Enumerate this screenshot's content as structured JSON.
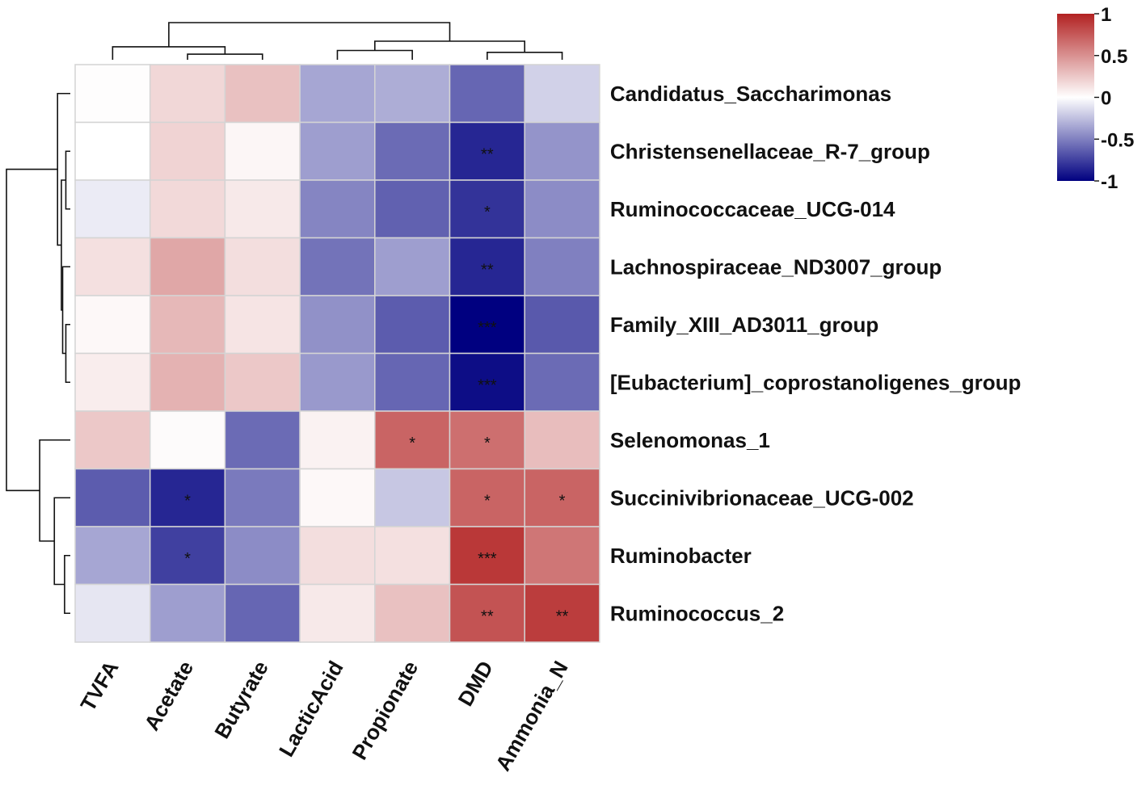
{
  "chart_data": {
    "type": "heatmap",
    "title": "",
    "xlabel": "",
    "ylabel": "",
    "columns": [
      "TVFA",
      "Acetate",
      "Butyrate",
      "LacticAcid",
      "Propionate",
      "DMD",
      "Ammonia_N"
    ],
    "rows": [
      "Candidatus_Saccharimonas",
      "Christensenellaceae_R-7_group",
      "Ruminococcaceae_UCG-014",
      "Lachnospiraceae_ND3007_group",
      "Family_XIII_AD3011_group",
      "[Eubacterium]_coprostanoligenes_group",
      "Selenomonas_1",
      "Succinivibrionaceae_UCG-002",
      "Ruminobacter",
      "Ruminococcus_2"
    ],
    "values": [
      [
        0.01,
        0.18,
        0.28,
        -0.35,
        -0.32,
        -0.6,
        -0.18
      ],
      [
        0.0,
        0.2,
        0.04,
        -0.38,
        -0.58,
        -0.85,
        -0.42
      ],
      [
        -0.08,
        0.17,
        0.1,
        -0.48,
        -0.62,
        -0.8,
        -0.45
      ],
      [
        0.14,
        0.4,
        0.15,
        -0.55,
        -0.38,
        -0.85,
        -0.5
      ],
      [
        0.03,
        0.32,
        0.12,
        -0.43,
        -0.64,
        -1.0,
        -0.65
      ],
      [
        0.08,
        0.35,
        0.25,
        -0.4,
        -0.6,
        -0.95,
        -0.58
      ],
      [
        0.25,
        0.02,
        -0.58,
        0.06,
        0.7,
        0.65,
        0.3
      ],
      [
        -0.64,
        -0.85,
        -0.52,
        0.03,
        -0.22,
        0.7,
        0.7
      ],
      [
        -0.35,
        -0.75,
        -0.45,
        0.15,
        0.14,
        0.9,
        0.62
      ],
      [
        -0.1,
        -0.38,
        -0.6,
        0.1,
        0.28,
        0.78,
        0.88
      ]
    ],
    "significance": [
      [
        "",
        "",
        "",
        "",
        "",
        "",
        ""
      ],
      [
        "",
        "",
        "",
        "",
        "",
        "**",
        ""
      ],
      [
        "",
        "",
        "",
        "",
        "",
        "*",
        ""
      ],
      [
        "",
        "",
        "",
        "",
        "",
        "**",
        ""
      ],
      [
        "",
        "",
        "",
        "",
        "",
        "***",
        ""
      ],
      [
        "",
        "",
        "",
        "",
        "",
        "***",
        ""
      ],
      [
        "",
        "",
        "",
        "",
        "*",
        "*",
        ""
      ],
      [
        "",
        "*",
        "",
        "",
        "",
        "*",
        "*"
      ],
      [
        "",
        "*",
        "",
        "",
        "",
        "***",
        ""
      ],
      [
        "",
        "",
        "",
        "",
        "",
        "**",
        "**"
      ]
    ],
    "color_scale": {
      "min": -1,
      "max": 1,
      "low_color": "#000080",
      "mid_color": "#ffffff",
      "high_color": "#b22222",
      "ticks": [
        1,
        0.5,
        0,
        -0.5,
        -1
      ],
      "tick_labels": [
        "1",
        "0.5",
        "0",
        "-0.5",
        "-1"
      ],
      "legend_position": "top-right"
    },
    "column_dendrogram": {
      "leaves": [
        0,
        1,
        2,
        3,
        4,
        5,
        6
      ],
      "merges": [
        {
          "a": 1,
          "b": 2,
          "height": 0.15
        },
        {
          "a": 5,
          "b": 6,
          "height": 0.2
        },
        {
          "a": 3,
          "b": 4,
          "height": 0.25
        },
        {
          "a": 0,
          "b": 7,
          "height": 0.35
        },
        {
          "a": 9,
          "b": 8,
          "height": 0.5
        },
        {
          "a": 10,
          "b": 11,
          "height": 1.0
        }
      ]
    },
    "row_dendrogram": {
      "leaves": [
        0,
        1,
        2,
        3,
        4,
        5,
        6,
        7,
        8,
        9
      ],
      "merges": [
        {
          "a": 4,
          "b": 5,
          "height": 0.07
        },
        {
          "a": 1,
          "b": 2,
          "height": 0.07
        },
        {
          "a": 3,
          "b": 10,
          "height": 0.12
        },
        {
          "a": 11,
          "b": 12,
          "height": 0.14
        },
        {
          "a": 8,
          "b": 9,
          "height": 0.09
        },
        {
          "a": 7,
          "b": 14,
          "height": 0.25
        },
        {
          "a": 0,
          "b": 13,
          "height": 0.2
        },
        {
          "a": 6,
          "b": 15,
          "height": 0.48
        },
        {
          "a": 16,
          "b": 17,
          "height": 1.0
        }
      ]
    }
  }
}
